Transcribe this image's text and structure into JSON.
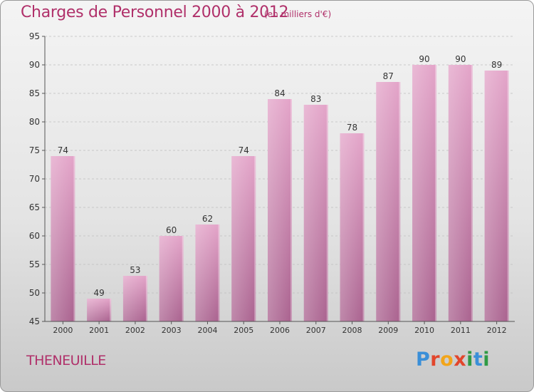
{
  "header": {
    "title": "Charges de Personnel 2000 à 2012",
    "subtitle": "(en milliers d'€)"
  },
  "footer": {
    "commune": "THENEUILLE",
    "logo_letters": [
      "P",
      "r",
      "o",
      "x",
      "i",
      "t",
      "i"
    ],
    "logo_colors": [
      "#3a8fd8",
      "#e2462c",
      "#f2a51a",
      "#e2462c",
      "#2f9a45",
      "#3a8fd8",
      "#2f9a45"
    ]
  },
  "colors": {
    "bar_top": "#e3a3c8",
    "bar_bottom": "#a9618e",
    "label": "#b0306a"
  },
  "chart_data": {
    "type": "bar",
    "title": "Charges de Personnel 2000 à 2012",
    "subtitle": "(en milliers d'€)",
    "categories": [
      "2000",
      "2001",
      "2002",
      "2003",
      "2004",
      "2005",
      "2006",
      "2007",
      "2008",
      "2009",
      "2010",
      "2011",
      "2012"
    ],
    "values": [
      74,
      49,
      53,
      60,
      62,
      74,
      84,
      83,
      78,
      87,
      90,
      90,
      89
    ],
    "ylim": [
      45,
      95
    ],
    "yticks": [
      45,
      50,
      55,
      60,
      65,
      70,
      75,
      80,
      85,
      90,
      95
    ],
    "grid": true,
    "legend": "none"
  }
}
